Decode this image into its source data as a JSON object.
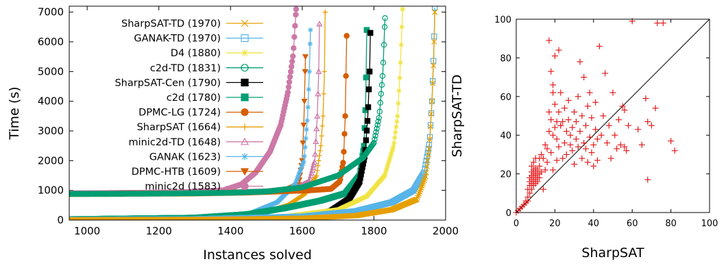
{
  "chart_data": [
    {
      "type": "line",
      "xlabel": "Instances solved",
      "ylabel": "Time (s)",
      "xlim": [
        950,
        2000
      ],
      "ylim": [
        0,
        7200
      ],
      "xticks": [
        1000,
        1200,
        1400,
        1600,
        1800,
        2000
      ],
      "yticks": [
        0,
        1000,
        2000,
        3000,
        4000,
        5000,
        6000,
        7000
      ],
      "legend_position": "top-left",
      "series": [
        {
          "name": "SharpSAT-TD (1970)",
          "color": "#e69f00",
          "marker": "x",
          "offset": 0,
          "pts": [
            [
              950,
              10
            ],
            [
              1300,
              20
            ],
            [
              1600,
              60
            ],
            [
              1750,
              150
            ],
            [
              1850,
              350
            ],
            [
              1920,
              700
            ],
            [
              1945,
              1500
            ],
            [
              1955,
              2500
            ],
            [
              1962,
              4000
            ],
            [
              1967,
              5500
            ],
            [
              1970,
              7000
            ]
          ]
        },
        {
          "name": "GANAK-TD (1970)",
          "color": "#56b4e9",
          "marker": "square",
          "offset": 0,
          "pts": [
            [
              950,
              12
            ],
            [
              1300,
              30
            ],
            [
              1600,
              120
            ],
            [
              1750,
              300
            ],
            [
              1850,
              600
            ],
            [
              1910,
              1000
            ],
            [
              1940,
              1600
            ],
            [
              1955,
              2600
            ],
            [
              1962,
              4000
            ],
            [
              1967,
              5700
            ],
            [
              1970,
              7150
            ]
          ]
        },
        {
          "name": "D4 (1880)",
          "color": "#f0e442",
          "marker": "star",
          "offset": 0,
          "pts": [
            [
              950,
              15
            ],
            [
              1300,
              40
            ],
            [
              1550,
              120
            ],
            [
              1700,
              350
            ],
            [
              1780,
              800
            ],
            [
              1830,
              1500
            ],
            [
              1855,
              2500
            ],
            [
              1866,
              3500
            ],
            [
              1873,
              5000
            ],
            [
              1880,
              7100
            ]
          ]
        },
        {
          "name": "c2d-TD (1831)",
          "color": "#009e73",
          "marker": "circle",
          "offset": 0,
          "pts": [
            [
              950,
              880
            ],
            [
              1200,
              890
            ],
            [
              1400,
              920
            ],
            [
              1500,
              960
            ],
            [
              1600,
              1100
            ],
            [
              1700,
              1500
            ],
            [
              1770,
              2100
            ],
            [
              1800,
              2600
            ],
            [
              1815,
              3500
            ],
            [
              1825,
              5000
            ],
            [
              1831,
              6800
            ]
          ]
        },
        {
          "name": "SharpSAT-Cen (1790)",
          "color": "#000000",
          "marker": "square-filled",
          "offset": 0,
          "pts": [
            [
              950,
              0
            ],
            [
              1450,
              5
            ],
            [
              1530,
              20
            ],
            [
              1600,
              100
            ],
            [
              1680,
              300
            ],
            [
              1730,
              700
            ],
            [
              1760,
              1300
            ],
            [
              1775,
              2200
            ],
            [
              1783,
              3500
            ],
            [
              1788,
              5000
            ],
            [
              1790,
              6300
            ]
          ]
        },
        {
          "name": "c2d (1780)",
          "color": "#009e73",
          "marker": "square-filled",
          "offset": 0,
          "pts": [
            [
              950,
              30
            ],
            [
              1300,
              80
            ],
            [
              1450,
              200
            ],
            [
              1550,
              400
            ],
            [
              1650,
              650
            ],
            [
              1720,
              900
            ],
            [
              1760,
              1500
            ],
            [
              1772,
              2500
            ],
            [
              1777,
              4000
            ],
            [
              1780,
              6400
            ]
          ]
        },
        {
          "name": "DPMC-LG (1724)",
          "color": "#d55e00",
          "marker": "circle-filled",
          "offset": 0,
          "pts": [
            [
              950,
              880
            ],
            [
              1300,
              900
            ],
            [
              1500,
              950
            ],
            [
              1620,
              1000
            ],
            [
              1680,
              1050
            ],
            [
              1705,
              1300
            ],
            [
              1715,
              2000
            ],
            [
              1720,
              3500
            ],
            [
              1724,
              6200
            ]
          ]
        },
        {
          "name": "SharpSAT (1664)",
          "color": "#e69f00",
          "marker": "plus",
          "offset": 0,
          "pts": [
            [
              950,
              20
            ],
            [
              1300,
              60
            ],
            [
              1480,
              200
            ],
            [
              1560,
              500
            ],
            [
              1610,
              900
            ],
            [
              1640,
              1500
            ],
            [
              1652,
              2500
            ],
            [
              1658,
              3500
            ],
            [
              1662,
              5000
            ],
            [
              1664,
              7000
            ]
          ]
        },
        {
          "name": "minic2d-TD (1648)",
          "color": "#cc79a7",
          "marker": "triangle",
          "offset": 0,
          "pts": [
            [
              950,
              880
            ],
            [
              1300,
              900
            ],
            [
              1500,
              960
            ],
            [
              1580,
              1050
            ],
            [
              1620,
              1300
            ],
            [
              1635,
              2000
            ],
            [
              1642,
              3500
            ],
            [
              1646,
              5000
            ],
            [
              1648,
              6600
            ]
          ]
        },
        {
          "name": "GANAK (1623)",
          "color": "#56b4e9",
          "marker": "star",
          "offset": 0,
          "pts": [
            [
              950,
              15
            ],
            [
              1300,
              50
            ],
            [
              1450,
              200
            ],
            [
              1530,
              600
            ],
            [
              1580,
              1200
            ],
            [
              1605,
              2000
            ],
            [
              1615,
              3500
            ],
            [
              1620,
              5000
            ],
            [
              1623,
              6400
            ]
          ]
        },
        {
          "name": "DPMC-HTB (1609)",
          "color": "#d55e00",
          "marker": "triangle-down",
          "offset": 0,
          "pts": [
            [
              950,
              880
            ],
            [
              1300,
              900
            ],
            [
              1450,
              930
            ],
            [
              1550,
              980
            ],
            [
              1590,
              1200
            ],
            [
              1600,
              2000
            ],
            [
              1605,
              3500
            ],
            [
              1609,
              5500
            ]
          ]
        },
        {
          "name": "minic2d (1583)",
          "color": "#cc79a7",
          "marker": "circle-filled",
          "offset": 0,
          "pts": [
            [
              950,
              900
            ],
            [
              1250,
              930
            ],
            [
              1380,
              1000
            ],
            [
              1430,
              1200
            ],
            [
              1470,
              1600
            ],
            [
              1510,
              2300
            ],
            [
              1540,
              3200
            ],
            [
              1560,
              4300
            ],
            [
              1575,
              5600
            ],
            [
              1583,
              7100
            ]
          ]
        }
      ]
    },
    {
      "type": "scatter",
      "xlabel": "SharpSAT",
      "ylabel": "SharpSAT-TD",
      "xlim": [
        0,
        100
      ],
      "ylim": [
        0,
        100
      ],
      "xticks": [
        0,
        20,
        40,
        60,
        80,
        100
      ],
      "yticks": [
        0,
        20,
        40,
        60,
        80,
        100
      ],
      "color": "#e41a1c",
      "marker": "plus",
      "diagonal": true,
      "points": [
        [
          0,
          0
        ],
        [
          1,
          1
        ],
        [
          2,
          2
        ],
        [
          3,
          3
        ],
        [
          4,
          4
        ],
        [
          5,
          5
        ],
        [
          5,
          6
        ],
        [
          6,
          6
        ],
        [
          6,
          8
        ],
        [
          6,
          12
        ],
        [
          7,
          10
        ],
        [
          7,
          14
        ],
        [
          7,
          16
        ],
        [
          7,
          18
        ],
        [
          8,
          12
        ],
        [
          8,
          15
        ],
        [
          8,
          17
        ],
        [
          8,
          19
        ],
        [
          8,
          21
        ],
        [
          8,
          24
        ],
        [
          9,
          14
        ],
        [
          9,
          16
        ],
        [
          9,
          18
        ],
        [
          9,
          20
        ],
        [
          9,
          22
        ],
        [
          9,
          26
        ],
        [
          10,
          15
        ],
        [
          10,
          17
        ],
        [
          10,
          19
        ],
        [
          10,
          21
        ],
        [
          10,
          23
        ],
        [
          11,
          16
        ],
        [
          11,
          18
        ],
        [
          11,
          20
        ],
        [
          11,
          22
        ],
        [
          12,
          18
        ],
        [
          12,
          20
        ],
        [
          12,
          24
        ],
        [
          13,
          21
        ],
        [
          13,
          30
        ],
        [
          14,
          12
        ],
        [
          14,
          28
        ],
        [
          15,
          35
        ],
        [
          16,
          33
        ],
        [
          17,
          42
        ],
        [
          17,
          52
        ],
        [
          18,
          48
        ],
        [
          18,
          31
        ],
        [
          19,
          40
        ],
        [
          19,
          62
        ],
        [
          19,
          66
        ],
        [
          20,
          44
        ],
        [
          20,
          56
        ],
        [
          21,
          38
        ],
        [
          21,
          47
        ],
        [
          22,
          34
        ],
        [
          22,
          52
        ],
        [
          23,
          45
        ],
        [
          23,
          62
        ],
        [
          24,
          28
        ],
        [
          24,
          47
        ],
        [
          25,
          36
        ],
        [
          25,
          54
        ],
        [
          26,
          30
        ],
        [
          26,
          42
        ],
        [
          27,
          48
        ],
        [
          27,
          58
        ],
        [
          28,
          35
        ],
        [
          28,
          40
        ],
        [
          29,
          32
        ],
        [
          29,
          44
        ],
        [
          30,
          25
        ],
        [
          30,
          52
        ],
        [
          31,
          38
        ],
        [
          31,
          47
        ],
        [
          32,
          34
        ],
        [
          32,
          60
        ],
        [
          33,
          42
        ],
        [
          33,
          78
        ],
        [
          34,
          28
        ],
        [
          34,
          50
        ],
        [
          35,
          36
        ],
        [
          35,
          70
        ],
        [
          36,
          33
        ],
        [
          36,
          45
        ],
        [
          37,
          26
        ],
        [
          37,
          55
        ],
        [
          38,
          39
        ],
        [
          38,
          62
        ],
        [
          39,
          31
        ],
        [
          39,
          49
        ],
        [
          40,
          35
        ],
        [
          40,
          24
        ],
        [
          41,
          43
        ],
        [
          41,
          57
        ],
        [
          42,
          38
        ],
        [
          42,
          27
        ],
        [
          43,
          86
        ],
        [
          44,
          40
        ],
        [
          45,
          50
        ],
        [
          46,
          72
        ],
        [
          47,
          36
        ],
        [
          48,
          45
        ],
        [
          49,
          28
        ],
        [
          50,
          62
        ],
        [
          51,
          40
        ],
        [
          52,
          33
        ],
        [
          53,
          48
        ],
        [
          54,
          35
        ],
        [
          55,
          55
        ],
        [
          56,
          34
        ],
        [
          56,
          53
        ],
        [
          57,
          32
        ],
        [
          58,
          45
        ],
        [
          60,
          99
        ],
        [
          63,
          43
        ],
        [
          65,
          35
        ],
        [
          67,
          59
        ],
        [
          68,
          47
        ],
        [
          68,
          17
        ],
        [
          70,
          45
        ],
        [
          72,
          54
        ],
        [
          73,
          98
        ],
        [
          76,
          98
        ],
        [
          80,
          37
        ],
        [
          82,
          32
        ],
        [
          20,
          81
        ],
        [
          22,
          84
        ],
        [
          17,
          89
        ],
        [
          18,
          73
        ],
        [
          23,
          45
        ],
        [
          15,
          22
        ],
        [
          16,
          26
        ],
        [
          19,
          22
        ],
        [
          21,
          27
        ],
        [
          12,
          28
        ],
        [
          10,
          28
        ]
      ]
    }
  ]
}
